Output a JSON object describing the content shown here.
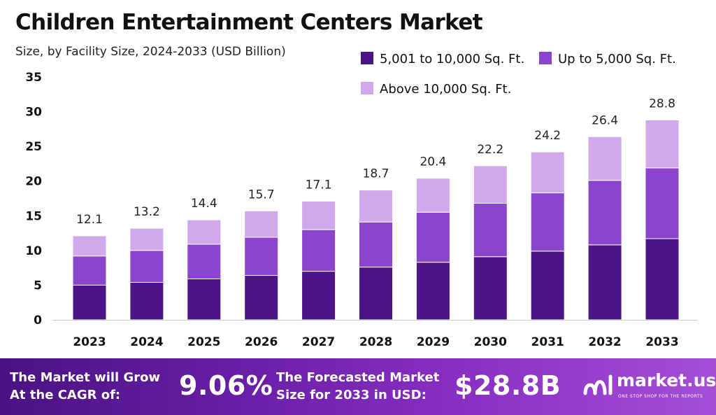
{
  "title": "Children Entertainment Centers Market",
  "subtitle": "Size, by Facility Size, 2024-2033 (USD Billion)",
  "chart_data": {
    "type": "bar",
    "stacked": true,
    "categories": [
      "2023",
      "2024",
      "2025",
      "2026",
      "2027",
      "2028",
      "2029",
      "2030",
      "2031",
      "2032",
      "2033"
    ],
    "series": [
      {
        "name": "5,001 to 10,000 Sq. Ft.",
        "color": "#4b1585",
        "values": [
          5.0,
          5.4,
          5.9,
          6.4,
          7.0,
          7.6,
          8.3,
          9.1,
          9.9,
          10.8,
          11.7
        ]
      },
      {
        "name": "Up to 5,000 Sq. Ft.",
        "color": "#8b45cc",
        "values": [
          4.2,
          4.6,
          5.0,
          5.5,
          6.0,
          6.5,
          7.2,
          7.7,
          8.4,
          9.3,
          10.2
        ]
      },
      {
        "name": "Above 10,000 Sq. Ft.",
        "color": "#d1a8ec",
        "values": [
          2.9,
          3.2,
          3.5,
          3.8,
          4.1,
          4.6,
          4.9,
          5.4,
          5.9,
          6.3,
          6.9
        ]
      }
    ],
    "totals": [
      12.1,
      13.2,
      14.4,
      15.7,
      17.1,
      18.7,
      20.4,
      22.2,
      24.2,
      26.4,
      28.8
    ],
    "total_labels": [
      "12.1",
      "13.2",
      "14.4",
      "15.7",
      "17.1",
      "18.7",
      "20.4",
      "22.2",
      "24.2",
      "26.4",
      "28.8"
    ],
    "y_ticks": [
      0,
      5,
      10,
      15,
      20,
      25,
      30,
      35
    ],
    "ylim": [
      0,
      35
    ],
    "xlabel": "",
    "ylabel": "",
    "grid": false,
    "legend_position": "top-right"
  },
  "banner": {
    "cagr_text_line1": "The Market will Grow",
    "cagr_text_line2": "At the CAGR of:",
    "cagr_value": "9.06%",
    "forecast_text_line1": "The Forecasted Market",
    "forecast_text_line2": "Size for 2033 in USD:",
    "forecast_value": "$28.8B",
    "logo_name": "market.us",
    "logo_tagline": "ONE STOP SHOP FOR THE REPORTS",
    "logo_icon": "market-us-logo-icon"
  }
}
